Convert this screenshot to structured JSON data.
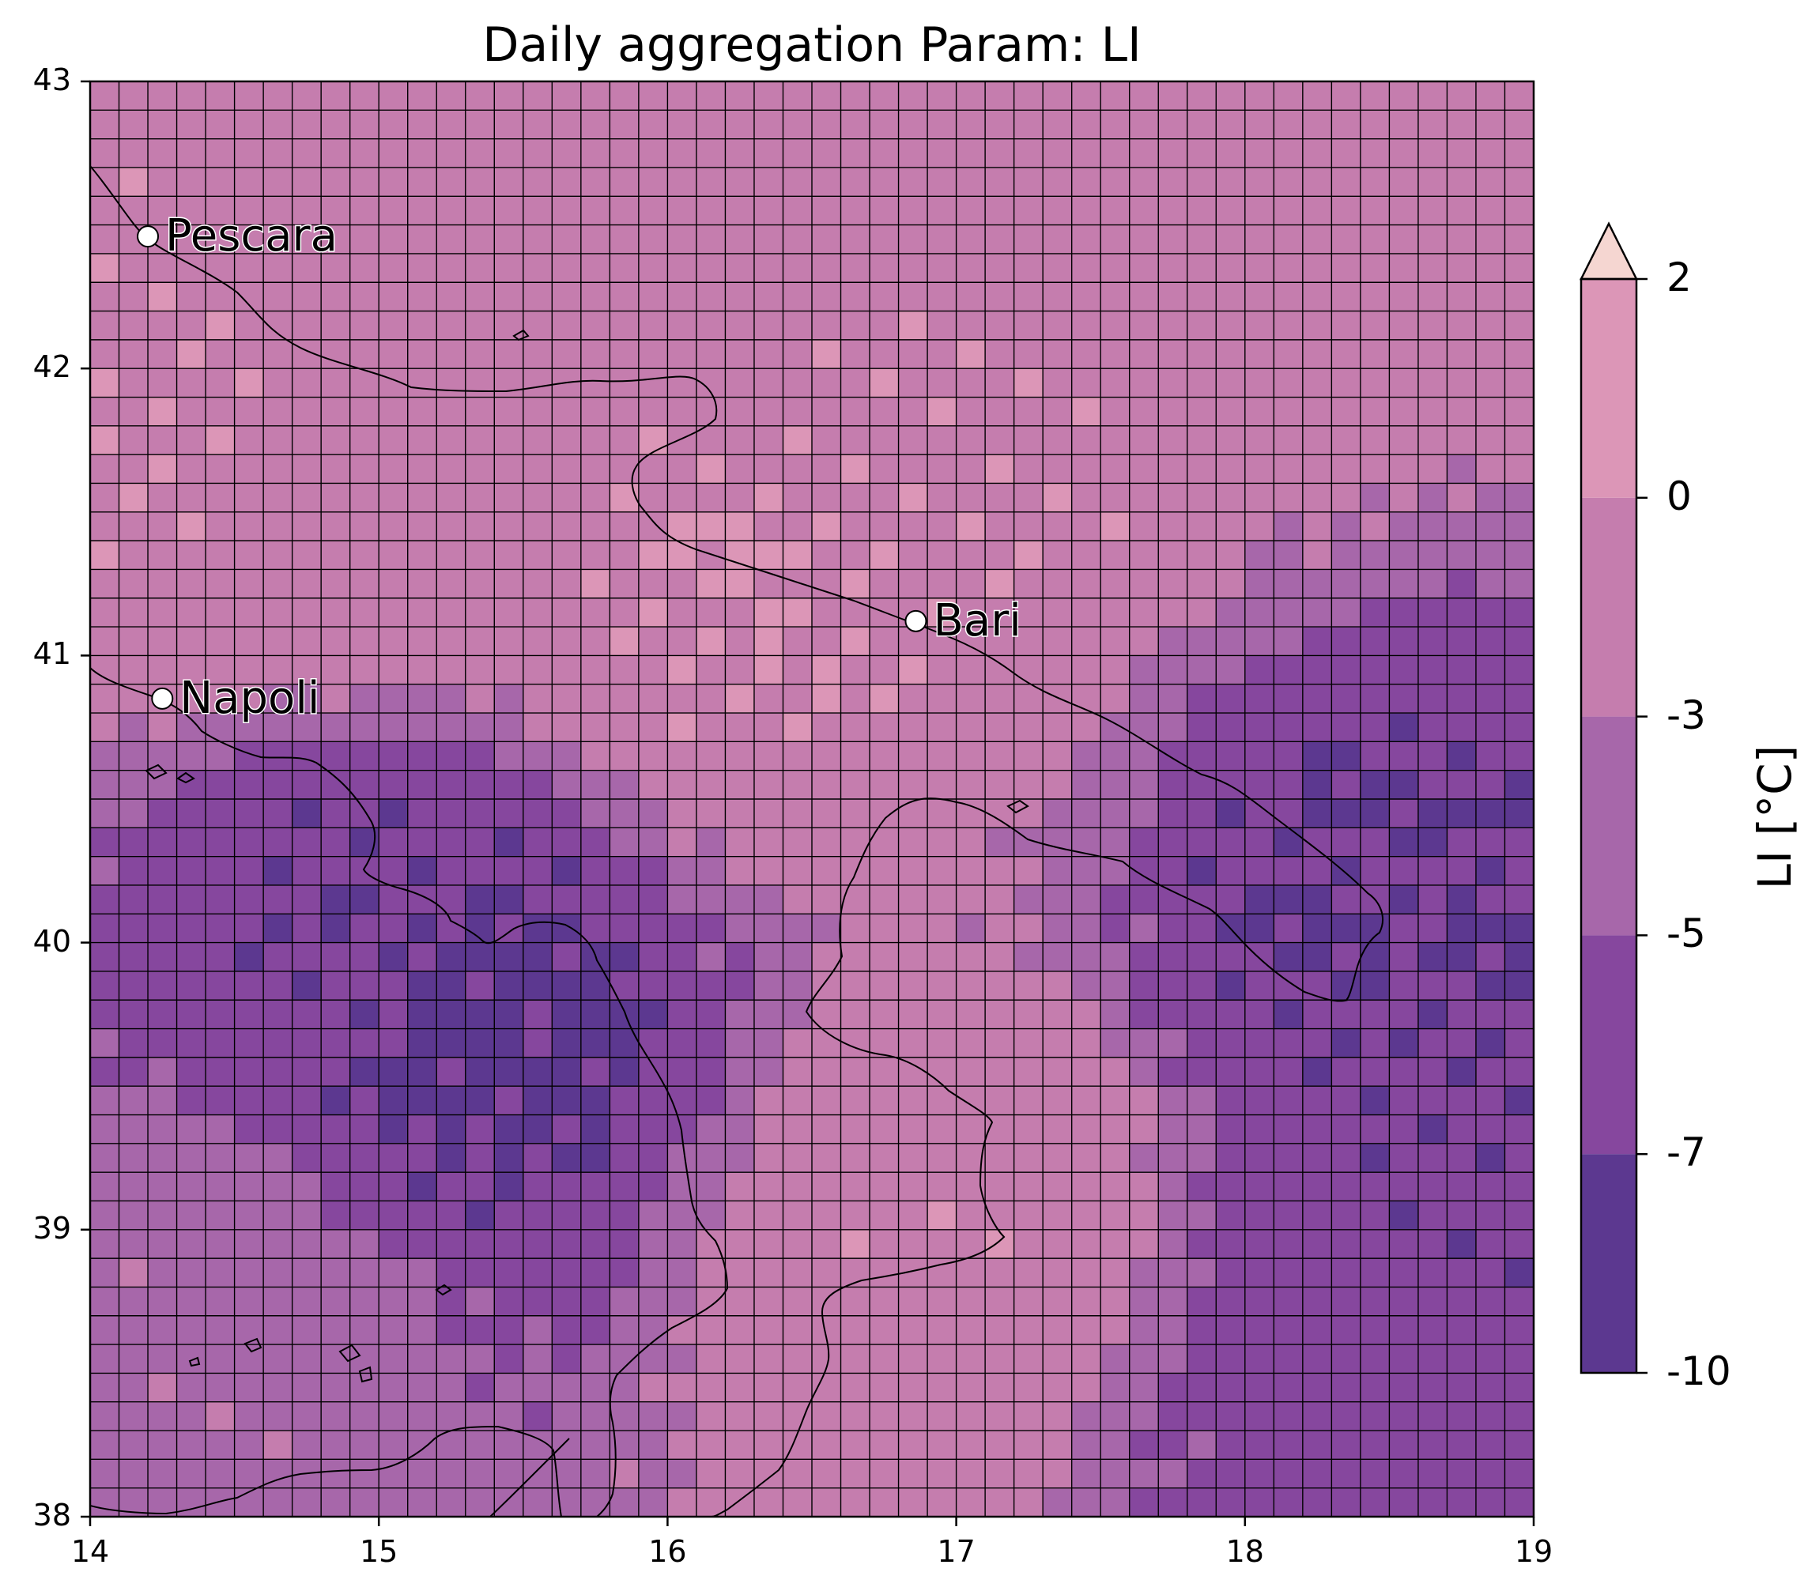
{
  "chart_data": {
    "type": "heatmap",
    "title": "Daily aggregation Param: LI",
    "x_ticks": [
      "14",
      "15",
      "16",
      "17",
      "18",
      "19"
    ],
    "y_ticks": [
      "38",
      "39",
      "40",
      "41",
      "42",
      "43"
    ],
    "xlim": [
      14,
      19
    ],
    "ylim": [
      38,
      43
    ],
    "grid_resolution_deg": 0.1,
    "colorbar": {
      "label": "LI [°C]",
      "tick_labels": [
        "2",
        "0",
        "-3",
        "-5",
        "-7",
        "-10"
      ],
      "levels": [
        -10,
        -7,
        -5,
        -3,
        0,
        2
      ],
      "extend": "max",
      "colors": [
        "#5c3890",
        "#86479e",
        "#a767aa",
        "#c57dae",
        "#dc96b7",
        "#f5d6d1"
      ]
    },
    "cities": [
      {
        "name": "Pescara",
        "lon": 14.2,
        "lat": 42.46
      },
      {
        "name": "Napoli",
        "lon": 14.25,
        "lat": 40.85
      },
      {
        "name": "Bari",
        "lon": 16.86,
        "lat": 41.12
      }
    ],
    "value_field_description": [
      {
        "lon": 14.3,
        "lat": 41.8,
        "value": -0.3
      },
      {
        "lon": 15.0,
        "lat": 41.5,
        "value": -1.5
      },
      {
        "lon": 16.2,
        "lat": 41.2,
        "value": 0.0
      },
      {
        "lon": 16.9,
        "lat": 41.7,
        "value": -0.3
      },
      {
        "lon": 17.0,
        "lat": 39.0,
        "value": -0.5
      },
      {
        "lon": 15.4,
        "lat": 39.7,
        "value": -7.3
      },
      {
        "lon": 15.0,
        "lat": 40.1,
        "value": -6.8
      },
      {
        "lon": 18.5,
        "lat": 40.1,
        "value": -7.0
      },
      {
        "lon": 18.7,
        "lat": 39.3,
        "value": -6.7
      },
      {
        "lon": 18.3,
        "lat": 38.5,
        "value": -5.8
      },
      {
        "lon": 14.3,
        "lat": 38.6,
        "value": -3.5
      },
      {
        "lon": 16.0,
        "lat": 42.8,
        "value": -2.2
      },
      {
        "lon": 18.5,
        "lat": 42.8,
        "value": -1.4
      }
    ]
  }
}
